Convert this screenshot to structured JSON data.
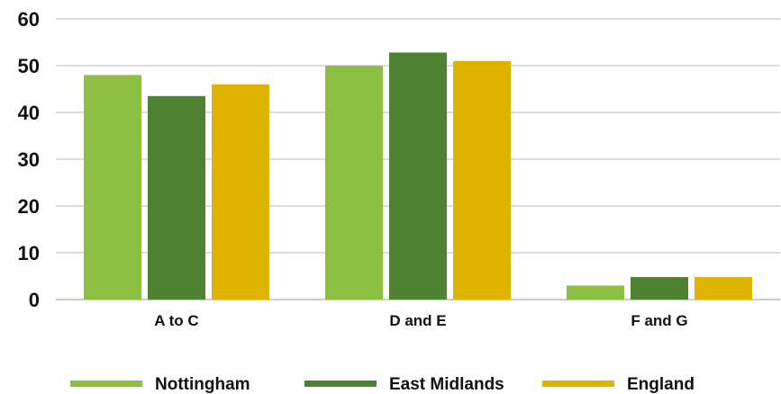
{
  "chart_data": {
    "type": "bar",
    "categories": [
      "A to C",
      "D and E",
      "F and G"
    ],
    "series": [
      {
        "name": "Nottingham",
        "values": [
          48,
          50,
          3
        ],
        "color": "#8dbf42"
      },
      {
        "name": "East Midlands",
        "values": [
          43.5,
          52.8,
          4.8
        ],
        "color": "#4f8230"
      },
      {
        "name": "England",
        "values": [
          46,
          51,
          4.8
        ],
        "color": "#dfb400"
      }
    ],
    "ylim": [
      0,
      60
    ],
    "yticks": [
      0,
      10,
      20,
      30,
      40,
      50,
      60
    ],
    "grid": true,
    "legend_position": "bottom"
  }
}
